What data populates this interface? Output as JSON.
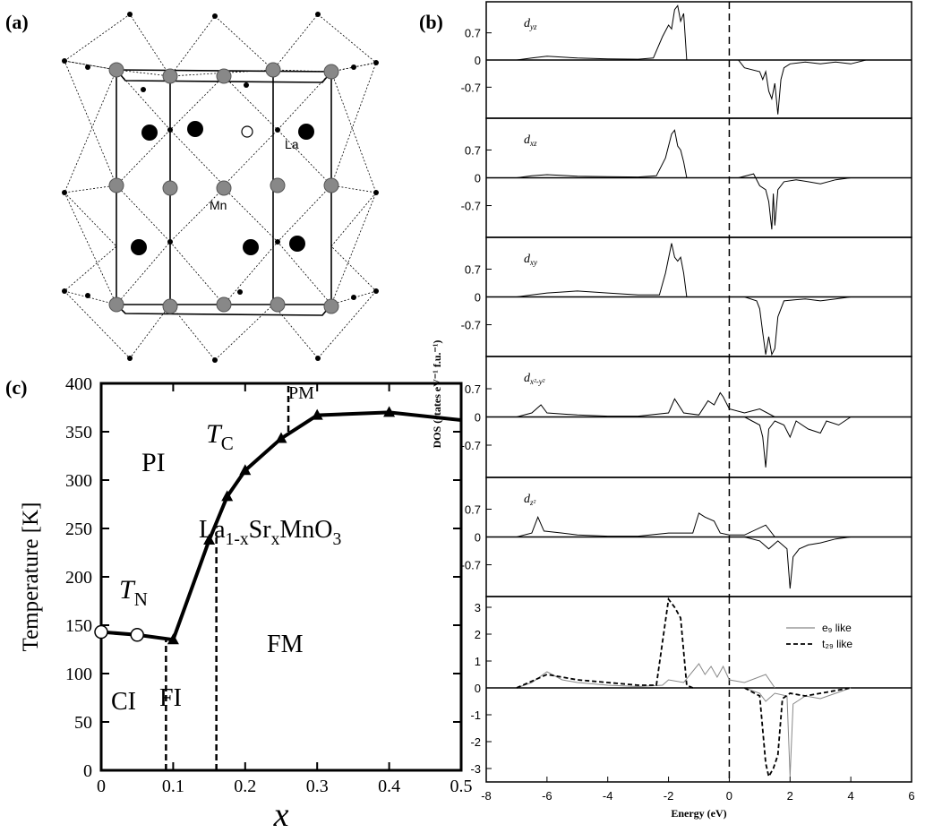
{
  "panel_labels": [
    "(a)",
    "(b)",
    "(c)"
  ],
  "structure": {
    "labels": [
      "La",
      "Mn"
    ]
  },
  "chart_data": [
    {
      "type": "phase",
      "ylabel": "Temperature [K]",
      "xlabel": "x",
      "xlim": [
        0,
        0.5
      ],
      "xticks": [
        0,
        0.1,
        0.2,
        0.3,
        0.4,
        0.5
      ],
      "ylim": [
        0,
        400
      ],
      "yticks": [
        0,
        50,
        100,
        150,
        200,
        250,
        300,
        350,
        400
      ],
      "series": [
        {
          "color": "#000000",
          "x": [
            0,
            0.05,
            0.1,
            0.15,
            0.175,
            0.2,
            0.25,
            0.3,
            0.4,
            0.5
          ],
          "values": [
            143,
            140,
            135,
            238,
            283,
            310,
            343,
            367,
            370,
            362
          ],
          "markers": [
            "circle",
            "circle",
            "triangle",
            "triangle",
            "triangle",
            "triangle",
            "triangle",
            "triangle",
            "triangle",
            null
          ]
        }
      ],
      "boundaries": [
        {
          "x": 0.09,
          "y": [
            0,
            135
          ]
        },
        {
          "x": 0.16,
          "y": [
            0,
            245
          ]
        },
        {
          "x": 0.26,
          "y": [
            350,
            400
          ]
        }
      ],
      "annotations": [
        {
          "parts": [
            "PI"
          ]
        },
        {
          "parts": [
            "T",
            "C"
          ]
        },
        {
          "parts": [
            "PM"
          ]
        },
        {
          "parts": [
            "La",
            "1-x",
            "Sr",
            "x",
            "MnO",
            "3"
          ]
        },
        {
          "parts": [
            "T",
            "N"
          ]
        },
        {
          "parts": [
            "FM"
          ]
        },
        {
          "parts": [
            "CI"
          ]
        },
        {
          "parts": [
            "FI"
          ]
        }
      ]
    },
    {
      "type": "line",
      "xlabel": "Energy (eV)",
      "ylabel": "DOS (states eV⁻¹ f.u.⁻¹)",
      "xlim": [
        -8,
        6
      ],
      "xticks": [
        -8,
        -6,
        -4,
        -2,
        0,
        2,
        4,
        6
      ],
      "vline": 0,
      "panels": [
        {
          "label": {
            "base": "d",
            "sub": "yz"
          },
          "ylim": [
            -1.5,
            1.5
          ],
          "yticks": [
            -0.7,
            0,
            0.7
          ],
          "series": [
            {
              "color": "#000000",
              "x": [
                -7,
                -6.5,
                -6,
                -5,
                -4,
                -3,
                -2.5,
                -2.2,
                -2,
                -1.9,
                -1.8,
                -1.7,
                -1.6,
                -1.5,
                -1.4,
                -1.2
              ],
              "values": [
                0,
                0.05,
                0.1,
                0.05,
                0.03,
                0.02,
                0.05,
                0.6,
                0.9,
                0.8,
                1.3,
                1.4,
                1.0,
                1.2,
                0,
                0
              ]
            },
            {
              "color": "#000000",
              "x": [
                0,
                0.3,
                0.5,
                1,
                1.1,
                1.2,
                1.3,
                1.4,
                1.5,
                1.6,
                1.7,
                1.8,
                2,
                2.5,
                3,
                3.5,
                4,
                4.5
              ],
              "values": [
                0,
                0,
                -0.2,
                -0.3,
                -0.5,
                -0.3,
                -0.8,
                -1.0,
                -0.6,
                -1.4,
                -0.5,
                -0.2,
                -0.1,
                -0.05,
                -0.1,
                -0.05,
                -0.1,
                0
              ]
            }
          ]
        },
        {
          "label": {
            "base": "d",
            "sub": "xz"
          },
          "ylim": [
            -1.5,
            1.5
          ],
          "yticks": [
            -0.7,
            0,
            0.7
          ],
          "series": [
            {
              "color": "#000000",
              "x": [
                -7,
                -6.5,
                -6,
                -5,
                -4,
                -3,
                -2.4,
                -2.1,
                -1.9,
                -1.8,
                -1.7,
                -1.6,
                -1.5,
                -1.4,
                -1.2
              ],
              "values": [
                0,
                0.05,
                0.08,
                0.04,
                0.03,
                0.02,
                0.05,
                0.5,
                1.1,
                1.2,
                0.8,
                0.7,
                0.4,
                0,
                0
              ]
            },
            {
              "color": "#000000",
              "x": [
                0,
                0.3,
                0.8,
                1,
                1.2,
                1.3,
                1.4,
                1.45,
                1.5,
                1.6,
                1.8,
                2.2,
                2.6,
                3,
                3.5,
                4
              ],
              "values": [
                0,
                0,
                0.1,
                -0.2,
                -0.3,
                -0.6,
                -1.3,
                -0.4,
                -1.2,
                -0.3,
                -0.1,
                -0.05,
                -0.1,
                -0.15,
                -0.05,
                0
              ]
            }
          ]
        },
        {
          "label": {
            "base": "d",
            "sub": "xy"
          },
          "ylim": [
            -1.5,
            1.5
          ],
          "yticks": [
            -0.7,
            0,
            0.7
          ],
          "series": [
            {
              "color": "#000000",
              "x": [
                -7,
                -6.5,
                -6,
                -5,
                -4,
                -3,
                -2.3,
                -2.1,
                -1.9,
                -1.8,
                -1.7,
                -1.6,
                -1.5,
                -1.4,
                -1.2
              ],
              "values": [
                0,
                0.05,
                0.1,
                0.15,
                0.1,
                0.05,
                0.05,
                0.6,
                1.35,
                1.0,
                0.9,
                1.0,
                0.6,
                0,
                0
              ]
            },
            {
              "color": "#000000",
              "x": [
                0,
                0.5,
                0.9,
                1,
                1.1,
                1.2,
                1.3,
                1.4,
                1.5,
                1.6,
                1.8,
                2.5,
                3,
                3.5,
                4
              ],
              "values": [
                0,
                0,
                -0.1,
                -0.3,
                -0.9,
                -1.45,
                -1.0,
                -1.45,
                -1.3,
                -0.5,
                -0.1,
                -0.05,
                -0.1,
                -0.05,
                0
              ]
            }
          ]
        },
        {
          "label": {
            "base": "d",
            "sub": "x²-y²"
          },
          "ylim": [
            -1.5,
            1.5
          ],
          "yticks": [
            -0.7,
            0,
            0.7
          ],
          "series": [
            {
              "color": "#000000",
              "x": [
                -7,
                -6.5,
                -6.2,
                -6,
                -5,
                -4,
                -3,
                -2,
                -1.8,
                -1.5,
                -1,
                -0.7,
                -0.5,
                -0.3,
                -0.2,
                0,
                0.5,
                1,
                1.5
              ],
              "values": [
                0,
                0.1,
                0.3,
                0.1,
                0.05,
                0.02,
                0.02,
                0.1,
                0.45,
                0.1,
                0.05,
                0.4,
                0.3,
                0.6,
                0.5,
                0.2,
                0.1,
                0.2,
                0
              ]
            },
            {
              "color": "#000000",
              "x": [
                0.5,
                1,
                1.1,
                1.2,
                1.3,
                1.5,
                1.8,
                2,
                2.2,
                2.6,
                3,
                3.2,
                3.6,
                4
              ],
              "values": [
                0,
                -0.2,
                -0.5,
                -1.25,
                -0.3,
                -0.1,
                -0.2,
                -0.5,
                -0.1,
                -0.3,
                -0.4,
                -0.1,
                -0.2,
                0
              ]
            }
          ]
        },
        {
          "label": {
            "base": "d",
            "sub": "z²"
          },
          "ylim": [
            -1.5,
            1.5
          ],
          "yticks": [
            -0.7,
            0,
            0.7
          ],
          "series": [
            {
              "color": "#000000",
              "x": [
                -7,
                -6.5,
                -6.3,
                -6.1,
                -5.5,
                -5,
                -4,
                -3,
                -2,
                -1.2,
                -1,
                -0.8,
                -0.5,
                -0.3,
                0,
                0.5,
                1.2,
                1.5
              ],
              "values": [
                0,
                0.1,
                0.5,
                0.15,
                0.1,
                0.05,
                0.02,
                0.02,
                0.1,
                0.1,
                0.6,
                0.5,
                0.4,
                0.1,
                0.05,
                0.05,
                0.3,
                0
              ]
            },
            {
              "color": "#000000",
              "x": [
                0.5,
                1,
                1.3,
                1.6,
                1.9,
                2,
                2.1,
                2.3,
                2.6,
                3,
                3.5,
                4
              ],
              "values": [
                0,
                -0.1,
                -0.3,
                -0.1,
                -0.3,
                -1.3,
                -0.5,
                -0.3,
                -0.2,
                -0.15,
                -0.05,
                0
              ]
            }
          ]
        },
        {
          "label": null,
          "ylim": [
            -3.5,
            3.4
          ],
          "yticks": [
            -3,
            -2,
            -1,
            0,
            1,
            2,
            3
          ],
          "legend": "upper right",
          "series": [
            {
              "name": "e₉ like",
              "color": "#888888",
              "dash": false,
              "x": [
                -7,
                -6.5,
                -6,
                -5.5,
                -5,
                -4,
                -3,
                -2.2,
                -2,
                -1.5,
                -1,
                -0.8,
                -0.6,
                -0.4,
                -0.2,
                0,
                0.5,
                1.2,
                1.5
              ],
              "values": [
                0,
                0.2,
                0.6,
                0.3,
                0.2,
                0.1,
                0.05,
                0.1,
                0.3,
                0.2,
                0.9,
                0.5,
                0.8,
                0.4,
                0.8,
                0.3,
                0.2,
                0.5,
                0
              ]
            },
            {
              "name": "t₂₉ like",
              "color": "#000000",
              "dash": true,
              "x": [
                -7,
                -6,
                -5,
                -4,
                -3,
                -2.4,
                -2,
                -1.8,
                -1.6,
                -1.4,
                -1.2
              ],
              "values": [
                0,
                0.5,
                0.3,
                0.2,
                0.1,
                0.1,
                3.3,
                3.0,
                2.6,
                0.1,
                0
              ]
            },
            {
              "color": "#888888",
              "dash": false,
              "x": [
                0.5,
                1,
                1.2,
                1.5,
                1.9,
                2,
                2.1,
                2.5,
                3,
                3.5,
                4
              ],
              "values": [
                0,
                -0.2,
                -0.5,
                -0.2,
                -0.3,
                -3.3,
                -0.6,
                -0.3,
                -0.4,
                -0.2,
                0
              ]
            },
            {
              "color": "#000000",
              "dash": true,
              "x": [
                0.5,
                1,
                1.2,
                1.3,
                1.45,
                1.6,
                1.75,
                2,
                2.5,
                3,
                3.5,
                4
              ],
              "values": [
                0,
                -0.3,
                -2.8,
                -3.3,
                -3.0,
                -2.5,
                -0.4,
                -0.2,
                -0.3,
                -0.2,
                -0.1,
                0
              ]
            }
          ]
        }
      ]
    }
  ]
}
